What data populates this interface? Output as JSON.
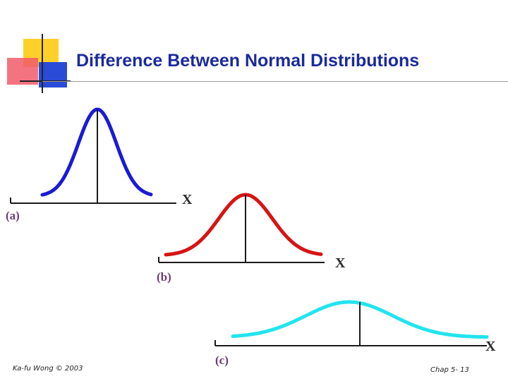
{
  "title": "Difference Between Normal Distributions",
  "panels": [
    {
      "label": "(a)",
      "axis_label": "X",
      "curve_color": "#1a1ad6",
      "spread": "narrow"
    },
    {
      "label": "(b)",
      "axis_label": "X",
      "curve_color": "#d61414",
      "spread": "medium"
    },
    {
      "label": "(c)",
      "axis_label": "X",
      "curve_color": "#22e4ee",
      "spread": "wide"
    }
  ],
  "footer": {
    "left": "Ka-fu Wong © 2003",
    "right": "Chap 5- 13"
  },
  "logo_colors": {
    "yellow": "#ffd02a",
    "red": "#f25a6a",
    "blue": "#2a4ad8"
  }
}
